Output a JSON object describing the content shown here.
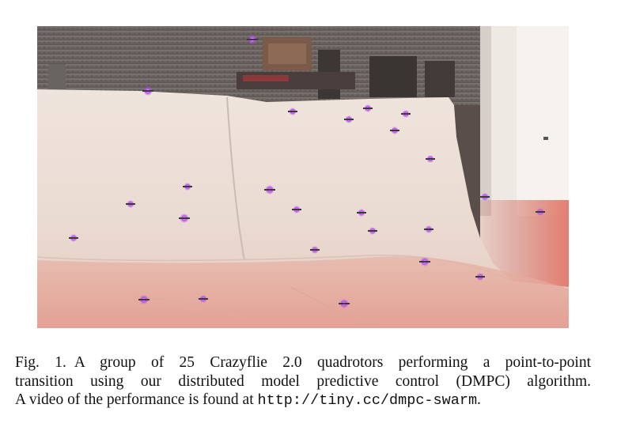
{
  "figure": {
    "label": "Fig. 1.",
    "caption_line1": "A group of 25 Crazyflie 2.0 quadrotors performing a point-to-point",
    "caption_line2": "transition using our distributed model predictive control (DMPC) algorithm.",
    "caption_line3_prefix": "A video of the performance is found at ",
    "caption_url": "http://tiny.cc/dmpc-swarm",
    "caption_line3_suffix": "."
  },
  "photo": {
    "subject": "quadrotor swarm",
    "drone_count": 25,
    "colors": {
      "sheet": "#ece0d8",
      "background_wall": "#6b6360",
      "floor_glow": "#d9786a",
      "drone_light": "#b84cf0"
    }
  }
}
